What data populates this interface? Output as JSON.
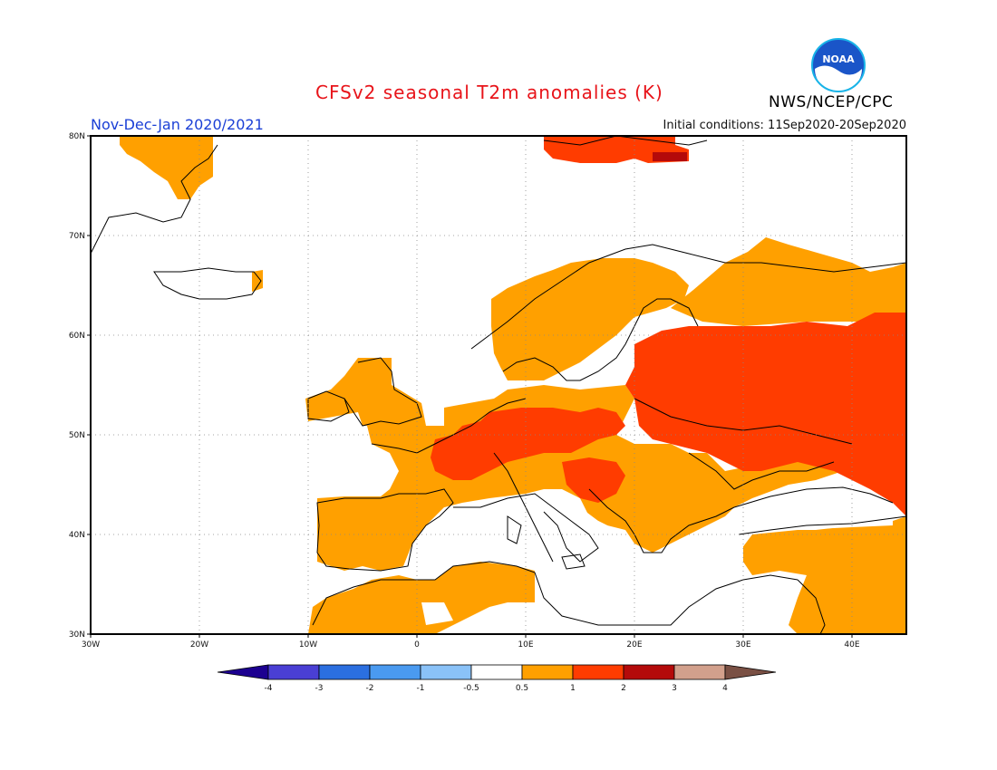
{
  "title": "CFSv2 seasonal T2m anomalies (K)",
  "agency": "NWS/NCEP/CPC",
  "logo_text": "NOAA",
  "period": "Nov-Dec-Jan 2020/2021",
  "initial_conditions": "Initial conditions: 11Sep2020-20Sep2020",
  "map": {
    "lon_range": [
      -30,
      45
    ],
    "lat_range": [
      30,
      80
    ],
    "lat_ticks": [
      "80N",
      "70N",
      "60N",
      "50N",
      "40N",
      "30N"
    ],
    "lon_ticks": [
      "30W",
      "20W",
      "10W",
      "0",
      "10E",
      "20E",
      "30E",
      "40E"
    ],
    "grid": "dotted"
  },
  "legend": {
    "colors": [
      "#1c0090",
      "#4a3fd4",
      "#2b6fe0",
      "#4a9af0",
      "#8ac2f8",
      "#ffffff",
      "#ffa000",
      "#ff3c00",
      "#b40a0a",
      "#d2a08c",
      "#7a5044"
    ],
    "labels": [
      "-4",
      "-3",
      "-2",
      "-1",
      "-0.5",
      "0.5",
      "1",
      "2",
      "3",
      "4"
    ]
  },
  "regions": [
    {
      "name": "Greenland east coast",
      "category": "0.5 to 1"
    },
    {
      "name": "Svalbard",
      "category": "1 to 2"
    },
    {
      "name": "Scandinavia",
      "category": "0.5 to 1"
    },
    {
      "name": "Iberian Peninsula",
      "category": "0.5 to 1"
    },
    {
      "name": "France and Central Europe",
      "category": "1 to 2"
    },
    {
      "name": "Eastern Europe and Western Russia",
      "category": "1 to 2"
    },
    {
      "name": "Balkans",
      "category": "0.5 to 1"
    },
    {
      "name": "Turkey and Middle East",
      "category": "0.5 to 1"
    },
    {
      "name": "North Africa",
      "category": "0.5 to 1"
    },
    {
      "name": "Mediterranean Sea",
      "category": "-0.5 to 0.5"
    }
  ]
}
